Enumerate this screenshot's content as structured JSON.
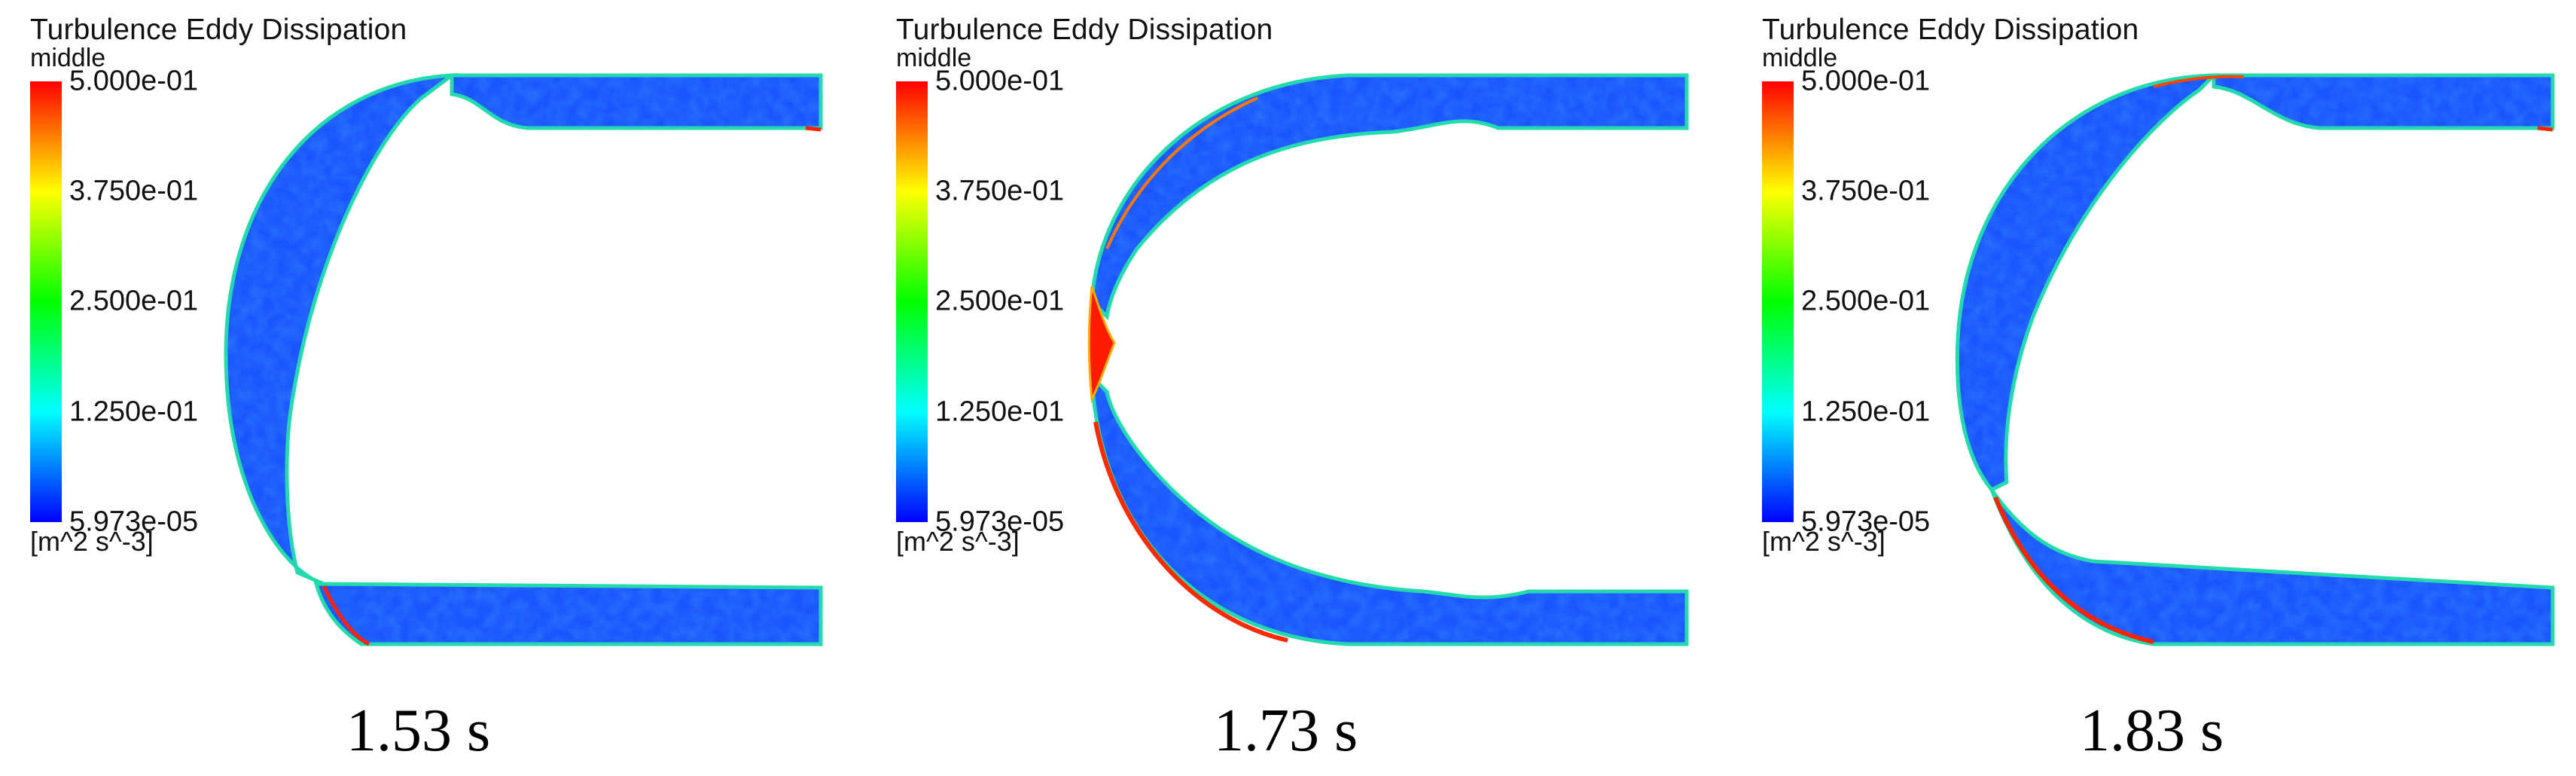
{
  "legend": {
    "title": "Turbulence Eddy Dissipation",
    "location": "middle",
    "ticks": [
      "5.000e-01",
      "3.750e-01",
      "2.500e-01",
      "1.250e-01",
      "5.973e-05"
    ],
    "unit": "[m^2 s^-3]"
  },
  "panels": [
    {
      "time_label": "1.53 s"
    },
    {
      "time_label": "1.73 s"
    },
    {
      "time_label": "1.83 s"
    }
  ],
  "colormap": {
    "low": "#0000ff",
    "mid_low": "#00ffff",
    "mid": "#00ff00",
    "mid_high": "#ffff00",
    "high": "#ff0000"
  }
}
